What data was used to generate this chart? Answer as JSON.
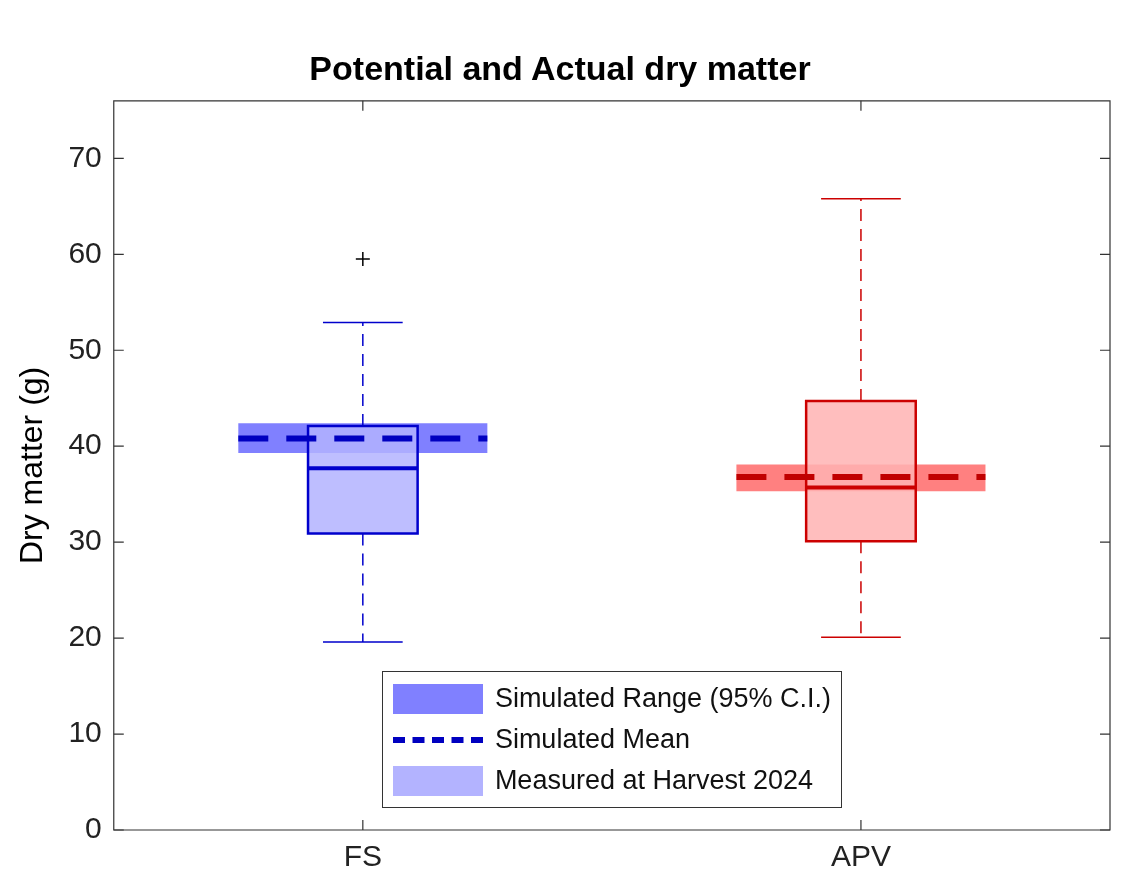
{
  "chart_data": {
    "type": "box",
    "title": "Potential and Actual dry matter",
    "ylabel": "Dry matter (g)",
    "categories": [
      "FS",
      "APV"
    ],
    "ylim": [
      0,
      76
    ],
    "yticks": [
      0,
      10,
      20,
      30,
      40,
      50,
      60,
      70
    ],
    "legend": "bottom",
    "ref_lines": [
      {
        "axis": "y",
        "value": 40.8,
        "color": "#0000c0",
        "line_style": "dashed",
        "label": "Simulated Mean"
      },
      {
        "axis": "y",
        "value": 36.8,
        "color": "#c00000",
        "line_style": "dashed"
      }
    ],
    "series": [
      {
        "name": "Simulated Range (95% C.I.)",
        "type": "bar",
        "base": [
          39.3,
          35.3
        ],
        "values": [
          3.1,
          2.8
        ],
        "colors": [
          "#8080ff",
          "#ff8080"
        ]
      },
      {
        "name": "Measured at Harvest 2024",
        "colors": [
          "#b3b3ff",
          "#ffb3b3"
        ],
        "boxes": [
          {
            "low": 19.6,
            "q1": 30.9,
            "median": 37.7,
            "q3": 42.1,
            "high": 52.9,
            "outliers": [
              59.5
            ]
          },
          {
            "low": 20.1,
            "q1": 30.1,
            "median": 35.7,
            "q3": 44.7,
            "high": 65.8
          }
        ]
      }
    ]
  }
}
